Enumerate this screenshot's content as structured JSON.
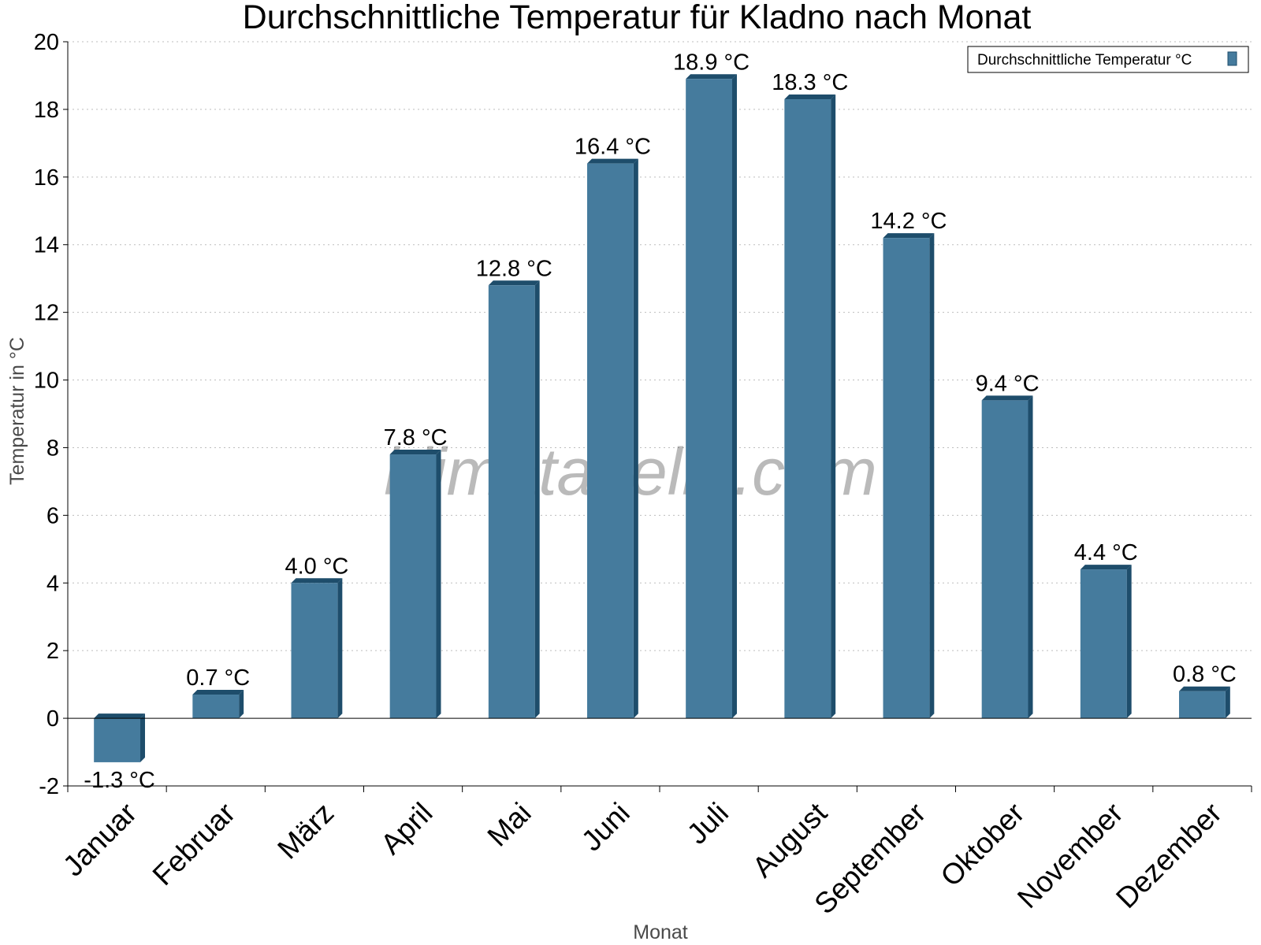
{
  "chart_data": {
    "type": "bar",
    "title": "Durchschnittliche Temperatur für Kladno nach Monat",
    "xlabel": "Monat",
    "ylabel": "Temperatur in °C",
    "categories": [
      "Januar",
      "Februar",
      "März",
      "April",
      "Mai",
      "Juni",
      "Juli",
      "August",
      "September",
      "Oktober",
      "November",
      "Dezember"
    ],
    "series": [
      {
        "name": "Durchschnittliche Temperatur °C",
        "values": [
          -1.3,
          0.7,
          4.0,
          7.8,
          12.8,
          16.4,
          18.9,
          18.3,
          14.2,
          9.4,
          4.4,
          0.8
        ],
        "labels": [
          "-1.3 °C",
          "0.7 °C",
          "4.0 °C",
          "7.8 °C",
          "12.8 °C",
          "16.4 °C",
          "18.9 °C",
          "18.3 °C",
          "14.2 °C",
          "9.4 °C",
          "4.4 °C",
          "0.8 °C"
        ]
      }
    ],
    "ylim": [
      -2,
      20
    ],
    "yticks": [
      "-2",
      "0",
      "2",
      "4",
      "6",
      "8",
      "10",
      "12",
      "14",
      "16",
      "18",
      "20"
    ],
    "grid": true,
    "legend_position": "top-right",
    "bar_color": "#457b9d",
    "bar_side_color": "#1e4d6b",
    "watermark": "klimatabelle.com"
  }
}
